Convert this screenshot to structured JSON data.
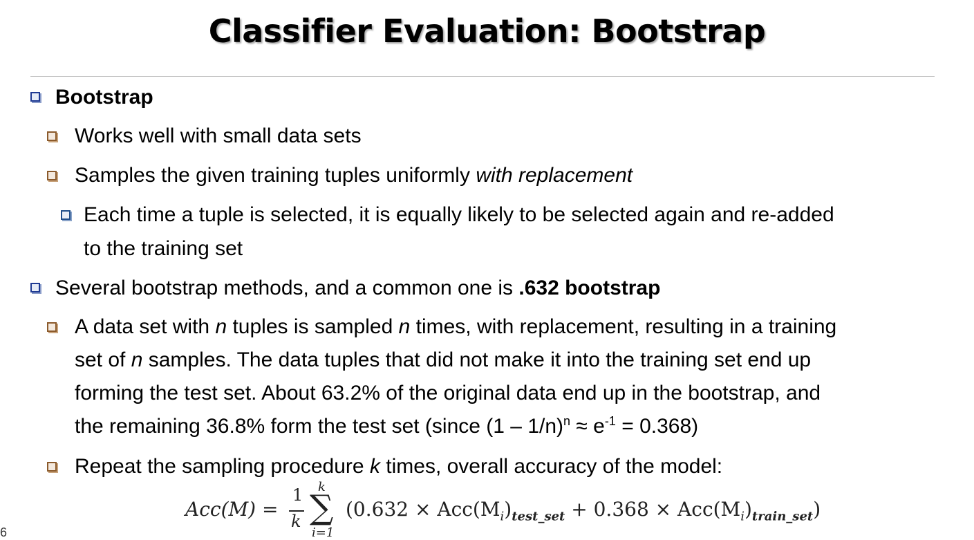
{
  "title": "Classifier Evaluation: Bootstrap",
  "bullets": {
    "b1": "Bootstrap",
    "b1_1": "Works well with small data sets",
    "b1_2_a": "Samples the given training tuples uniformly ",
    "b1_2_b": "with replacement",
    "b1_2_1_line1": "Each time a tuple is selected, it is equally likely to be selected again and re-added",
    "b1_2_1_line2": "to the training set",
    "b2_a": "Several bootstrap methods, and a common one is ",
    "b2_b": ".632 bootstrap",
    "b2_1_l1_a": "A data set with ",
    "b2_1_l1_n1": "n",
    "b2_1_l1_b": " tuples is sampled ",
    "b2_1_l1_n2": "n",
    "b2_1_l1_c": " times, with replacement, resulting in a training",
    "b2_1_l2_a": "set of ",
    "b2_1_l2_n": "n",
    "b2_1_l2_b": " samples.  The data tuples that did not make it into the training set end up",
    "b2_1_l3": "forming the test set.  About 63.2% of the original data end up in the bootstrap, and",
    "b2_1_l4_a": "the remaining 36.8% form the test set (since (1 – 1/n)",
    "b2_1_l4_sup1": "n",
    "b2_1_l4_b": " ≈ e",
    "b2_1_l4_sup2": "-1",
    "b2_1_l4_c": " = 0.368)",
    "b2_2_a": "Repeat the sampling procedure ",
    "b2_2_k": "k",
    "b2_2_b": " times, overall accuracy of the model:"
  },
  "formula": {
    "lhs": "Acc(M) =",
    "frac_num": "1",
    "frac_den": "k",
    "sum_top": "k",
    "sum_bottom": "i=1",
    "body_a": "(0.632 × Acc(M",
    "sub_i1": "i",
    "body_b": ")",
    "sub_test": "test_set",
    "body_c": " + 0.368 × Acc(M",
    "sub_i2": "i",
    "body_d": ")",
    "sub_train": "train_set",
    "body_e": ")"
  },
  "slide_number": "6"
}
